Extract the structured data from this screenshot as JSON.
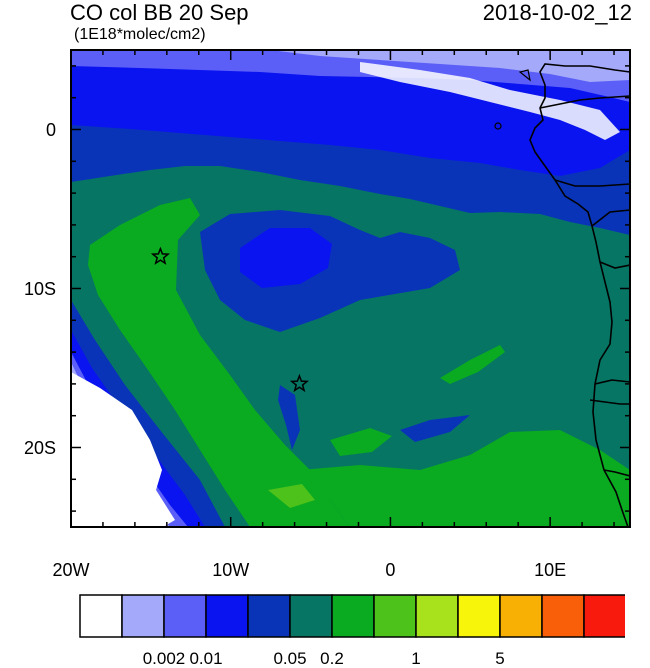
{
  "header": {
    "title": "CO col BB 20 Sep",
    "date": "2018-10-02_12",
    "units": "(1E18*molec/cm2)"
  },
  "axes": {
    "y_ticks": [
      {
        "value": 0,
        "label": "0"
      },
      {
        "value": -10,
        "label": "10S"
      },
      {
        "value": -20,
        "label": "20S"
      }
    ],
    "x_ticks": [
      {
        "value": -20,
        "label": "20W"
      },
      {
        "value": -10,
        "label": "10W"
      },
      {
        "value": 0,
        "label": "0"
      },
      {
        "value": 10,
        "label": "10E"
      }
    ],
    "lon_range": [
      -20,
      15
    ],
    "lat_range": [
      -25,
      5
    ]
  },
  "colorbar": {
    "colors": [
      "#ffffff",
      "#a4a9f9",
      "#5b5ff8",
      "#0a14f0",
      "#0934b8",
      "#067564",
      "#0aaa21",
      "#4cc21a",
      "#a8e21c",
      "#f7f60a",
      "#f9b005",
      "#f85f08",
      "#f81b0d"
    ],
    "labels": [
      {
        "after_box": 2,
        "text": "0.002"
      },
      {
        "after_box": 3,
        "text": "0.01"
      },
      {
        "after_box": 5,
        "text": "0.05"
      },
      {
        "after_box": 6,
        "text": "0.2"
      },
      {
        "after_box": 8,
        "text": "1"
      },
      {
        "after_box": 10,
        "text": "5"
      }
    ]
  },
  "markers": [
    {
      "name": "star-marker-ascension",
      "lon": -14.4,
      "lat": -8.0
    },
    {
      "name": "star-marker-st-helena",
      "lon": -5.7,
      "lat": -16.0
    }
  ]
}
